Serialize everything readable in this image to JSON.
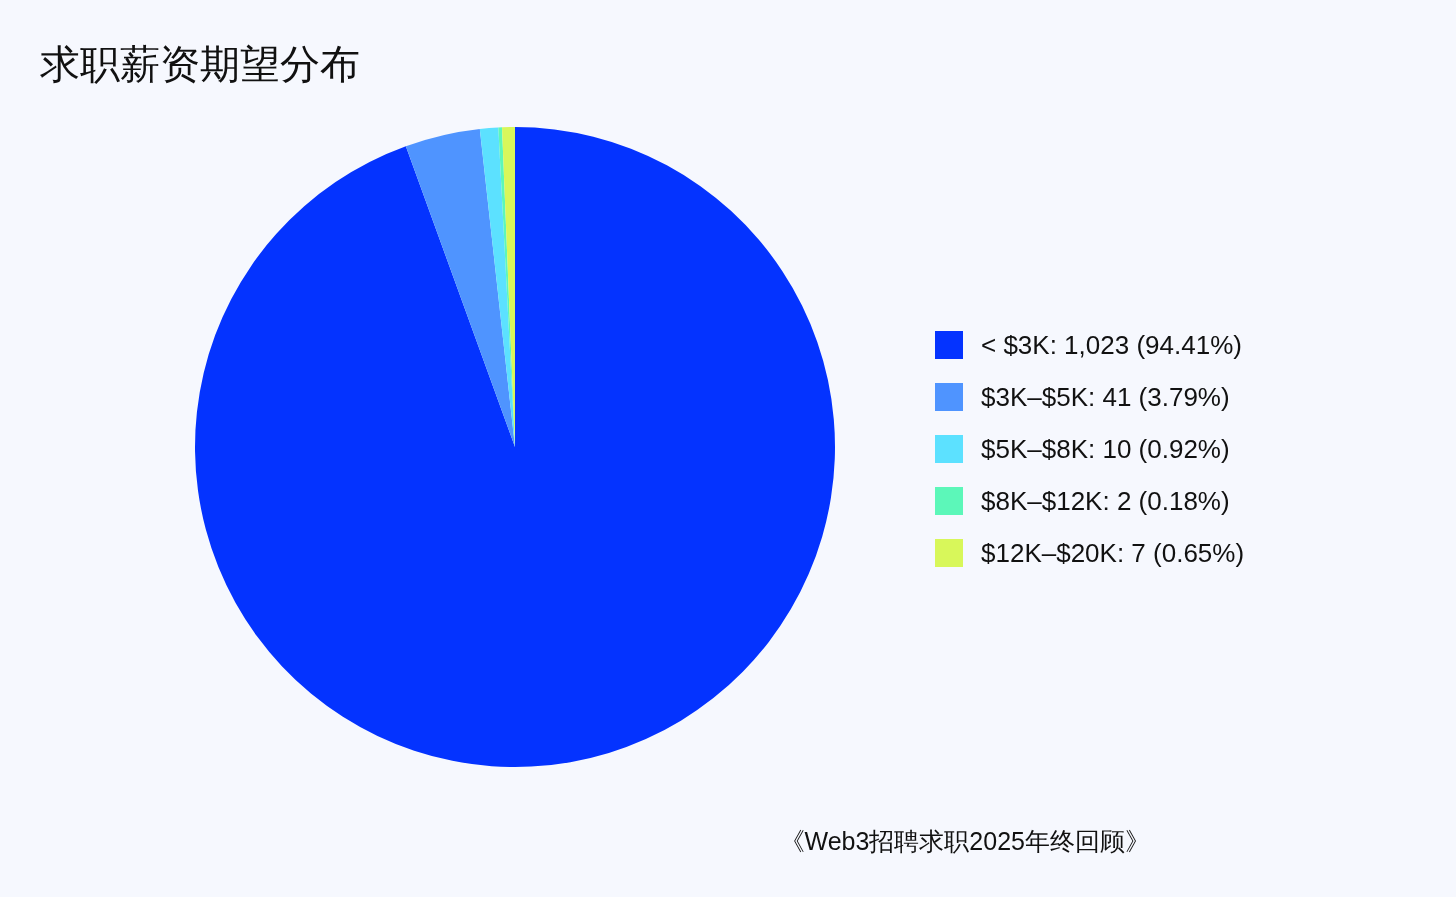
{
  "chart_data": {
    "type": "pie",
    "title": "求职薪资期望分布",
    "categories": [
      "< $3K: 1,023 (94.41%)",
      "$3K–$5K: 41 (3.79%)",
      "$5K–$8K: 10 (0.92%)",
      "$8K–$12K: 2 (0.18%)",
      "$12K–$20K: 7 (0.65%)"
    ],
    "values": [
      1023,
      41,
      10,
      2,
      7
    ],
    "colors": [
      "#0433ff",
      "#4f94ff",
      "#5ce1ff",
      "#5cf7b9",
      "#d8f75a"
    ],
    "legend": "right",
    "annotations": [
      "《Web3招聘求职2025年终回顾》"
    ]
  }
}
